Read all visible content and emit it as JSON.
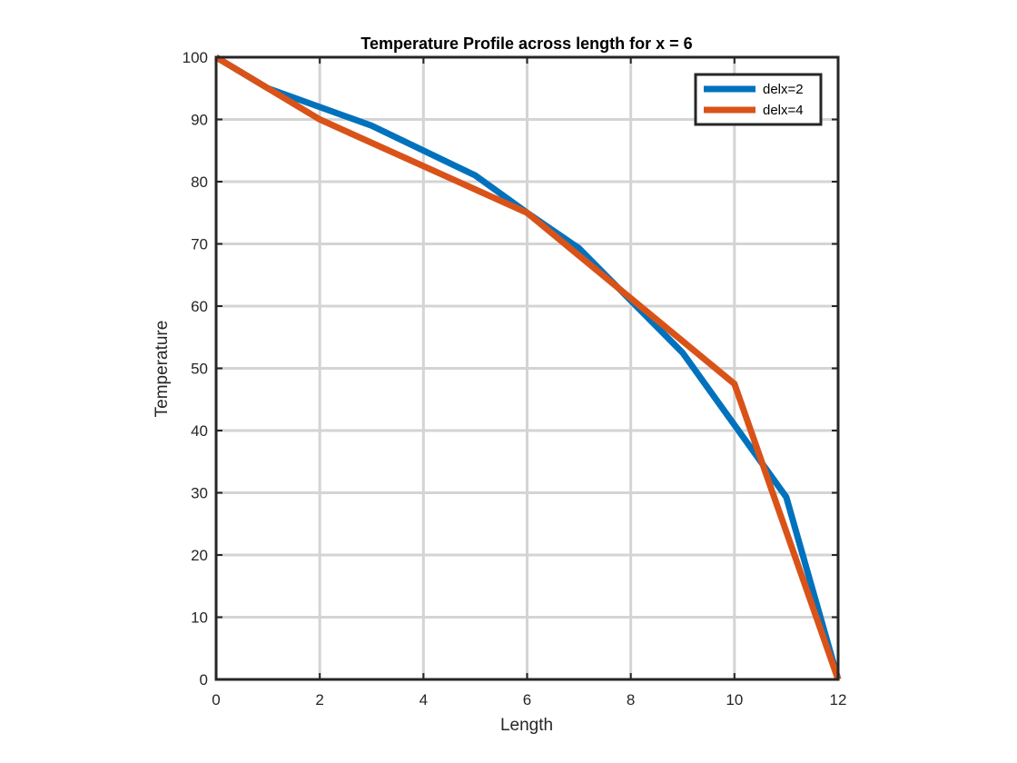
{
  "chart_data": {
    "type": "line",
    "title": "Temperature Profile across length for x = 6",
    "xlabel": "Length",
    "ylabel": "Temperature",
    "xlim": [
      0,
      12
    ],
    "ylim": [
      0,
      100
    ],
    "xticks": [
      0,
      2,
      4,
      6,
      8,
      10,
      12
    ],
    "yticks": [
      0,
      10,
      20,
      30,
      40,
      50,
      60,
      70,
      80,
      90,
      100
    ],
    "grid": true,
    "legend_position": "top-right",
    "series": [
      {
        "name": "delx=2",
        "color": "#0072BD",
        "x": [
          0,
          1,
          3,
          5,
          6,
          7,
          9,
          11,
          12
        ],
        "y": [
          100,
          95,
          89,
          81,
          75,
          69.3,
          52.5,
          29.3,
          0
        ]
      },
      {
        "name": "delx=4",
        "color": "#D95319",
        "x": [
          0,
          2,
          6,
          10,
          12
        ],
        "y": [
          100,
          90,
          75,
          47.5,
          0
        ]
      }
    ]
  }
}
